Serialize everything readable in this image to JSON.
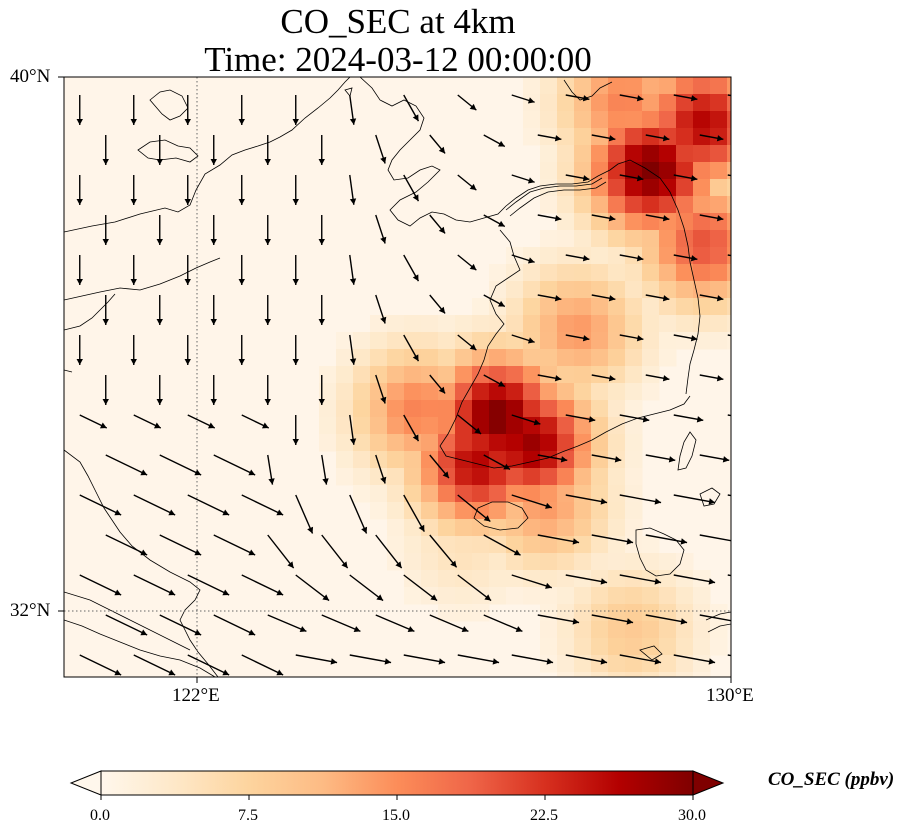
{
  "title": {
    "line1": "CO_SEC at 4km",
    "line2": "Time: 2024-03-12 00:00:00"
  },
  "axes": {
    "lat_ticks": [
      {
        "label": "40°N",
        "value": 40
      },
      {
        "label": "32°N",
        "value": 32
      }
    ],
    "lon_ticks": [
      {
        "label": "122°E",
        "value": 122
      },
      {
        "label": "130°E",
        "value": 130
      }
    ],
    "lon_range": [
      120,
      130
    ],
    "lat_range": [
      31,
      40
    ],
    "gridlines": "dotted"
  },
  "colorbar": {
    "label": "CO_SEC (ppbv)",
    "ticks": [
      "0.0",
      "7.5",
      "15.0",
      "22.5",
      "30.0"
    ],
    "min": 0,
    "max": 30,
    "extend": "both",
    "colormap": [
      "#fff7ec",
      "#fee8c8",
      "#fdd49e",
      "#fdbb84",
      "#fc8d59",
      "#ef6548",
      "#d7301f",
      "#b30000",
      "#7f0000"
    ]
  },
  "chart_data": {
    "type": "heatmap",
    "variable": "CO_SEC",
    "unit": "ppbv",
    "level": "4km",
    "time": "2024-03-12 00:00:00",
    "plumes": [
      {
        "lon": 128.8,
        "lat": 38.6,
        "value": 30
      },
      {
        "lon": 129.6,
        "lat": 39.3,
        "value": 26
      },
      {
        "lon": 129.6,
        "lat": 37.5,
        "value": 20
      },
      {
        "lon": 128.4,
        "lat": 39.6,
        "value": 16
      },
      {
        "lon": 127.7,
        "lat": 36.2,
        "value": 14
      },
      {
        "lon": 126.5,
        "lat": 34.9,
        "value": 30
      },
      {
        "lon": 127.0,
        "lat": 34.5,
        "value": 28
      },
      {
        "lon": 126.2,
        "lat": 34.2,
        "value": 26
      },
      {
        "lon": 125.3,
        "lat": 35.0,
        "value": 16
      },
      {
        "lon": 127.2,
        "lat": 33.6,
        "value": 14
      },
      {
        "lon": 128.5,
        "lat": 31.7,
        "value": 9
      },
      {
        "lon": 126.0,
        "lat": 33.0,
        "value": 5
      }
    ],
    "wind_vectors": "southward over China coast, turning eastward over the Yellow Sea and Korea"
  }
}
